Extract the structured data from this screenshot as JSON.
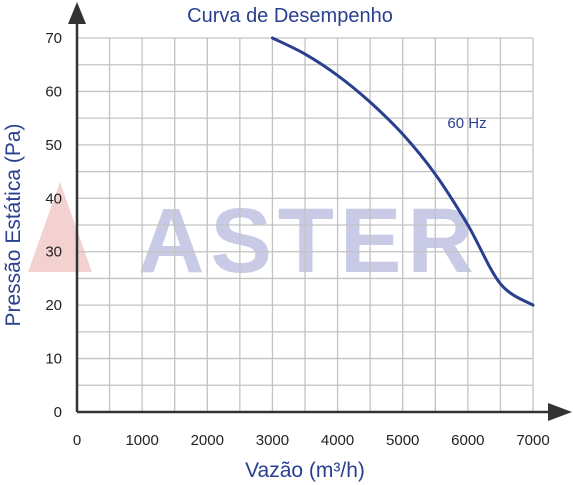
{
  "chart_data": {
    "type": "line",
    "title": "Curva de Desempenho",
    "xlabel": "Vazão (m³/h)",
    "ylabel": "Pressão Estática (Pa)",
    "xlim": [
      0,
      7000
    ],
    "ylim": [
      0,
      70
    ],
    "x_ticks": [
      "0",
      "1000",
      "2000",
      "3000",
      "4000",
      "5000",
      "6000",
      "7000"
    ],
    "y_ticks": [
      "0",
      "10",
      "20",
      "30",
      "40",
      "50",
      "60",
      "70"
    ],
    "grid": true,
    "series": [
      {
        "name": "60 Hz",
        "color": "#2a3f8f",
        "x": [
          3000,
          3500,
          4000,
          4500,
          5000,
          5500,
          6000,
          6500,
          7000
        ],
        "y": [
          70,
          67,
          63,
          58,
          52,
          44.5,
          35,
          24,
          20
        ]
      }
    ],
    "watermark": "ASTER"
  }
}
